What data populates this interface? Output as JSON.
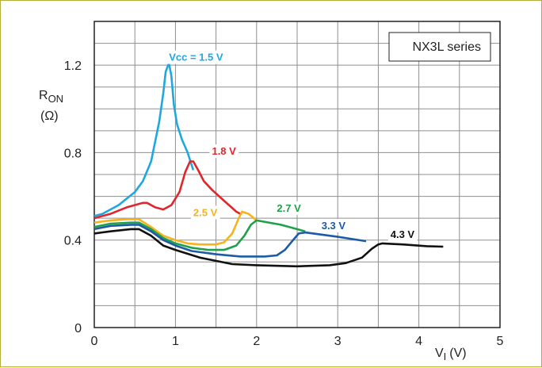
{
  "chart_data": {
    "type": "line",
    "title": "",
    "legend_box": "NX3L series",
    "xlabel_main": "V",
    "xlabel_sub": "I",
    "xlabel_unit": "(V)",
    "ylabel_main": "R",
    "ylabel_sub": "ON",
    "ylabel_unit": "(Ω)",
    "xlim": [
      0,
      5
    ],
    "ylim": [
      0,
      1.4
    ],
    "grid": true,
    "x_ticks": [
      {
        "value": 0,
        "label": "0"
      },
      {
        "value": 1,
        "label": "1"
      },
      {
        "value": 2,
        "label": "2"
      },
      {
        "value": 3,
        "label": "3"
      },
      {
        "value": 4,
        "label": "4"
      },
      {
        "value": 5,
        "label": "5"
      }
    ],
    "y_ticks": [
      {
        "value": 0,
        "label": "0"
      },
      {
        "value": 0.4,
        "label": "0.4"
      },
      {
        "value": 0.8,
        "label": "0.8"
      },
      {
        "value": 1.2,
        "label": "1.2"
      }
    ],
    "series": [
      {
        "name": "Vcc = 1.5 V",
        "color": "#1ea8df",
        "label_at": [
          0.92,
          1.22
        ],
        "points": [
          [
            0,
            0.51
          ],
          [
            0.1,
            0.52
          ],
          [
            0.3,
            0.56
          ],
          [
            0.5,
            0.62
          ],
          [
            0.6,
            0.67
          ],
          [
            0.7,
            0.76
          ],
          [
            0.75,
            0.85
          ],
          [
            0.8,
            0.94
          ],
          [
            0.85,
            1.07
          ],
          [
            0.88,
            1.17
          ],
          [
            0.92,
            1.21
          ],
          [
            0.95,
            1.15
          ],
          [
            0.98,
            1.02
          ],
          [
            1.02,
            0.93
          ],
          [
            1.08,
            0.86
          ],
          [
            1.15,
            0.8
          ],
          [
            1.22,
            0.72
          ]
        ]
      },
      {
        "name": "1.8 V",
        "color": "#e0262c",
        "label_at": [
          1.45,
          0.79
        ],
        "points": [
          [
            0,
            0.5
          ],
          [
            0.2,
            0.52
          ],
          [
            0.4,
            0.55
          ],
          [
            0.6,
            0.57
          ],
          [
            0.65,
            0.57
          ],
          [
            0.75,
            0.55
          ],
          [
            0.85,
            0.54
          ],
          [
            0.95,
            0.56
          ],
          [
            1.05,
            0.62
          ],
          [
            1.12,
            0.71
          ],
          [
            1.18,
            0.76
          ],
          [
            1.22,
            0.76
          ],
          [
            1.28,
            0.72
          ],
          [
            1.35,
            0.67
          ],
          [
            1.45,
            0.63
          ],
          [
            1.6,
            0.58
          ],
          [
            1.75,
            0.53
          ],
          [
            1.8,
            0.52
          ]
        ]
      },
      {
        "name": "2.5 V",
        "color": "#f6b21f",
        "label_at": [
          1.22,
          0.51
        ],
        "points": [
          [
            0,
            0.48
          ],
          [
            0.2,
            0.49
          ],
          [
            0.4,
            0.495
          ],
          [
            0.55,
            0.495
          ],
          [
            0.7,
            0.46
          ],
          [
            0.85,
            0.42
          ],
          [
            1.0,
            0.4
          ],
          [
            1.15,
            0.385
          ],
          [
            1.3,
            0.38
          ],
          [
            1.5,
            0.38
          ],
          [
            1.6,
            0.39
          ],
          [
            1.7,
            0.43
          ],
          [
            1.78,
            0.5
          ],
          [
            1.82,
            0.53
          ],
          [
            1.9,
            0.52
          ],
          [
            2.0,
            0.49
          ]
        ]
      },
      {
        "name": "2.7 V",
        "color": "#1ea14a",
        "label_at": [
          2.25,
          0.53
        ],
        "points": [
          [
            0,
            0.46
          ],
          [
            0.2,
            0.475
          ],
          [
            0.45,
            0.48
          ],
          [
            0.55,
            0.48
          ],
          [
            0.7,
            0.45
          ],
          [
            0.85,
            0.41
          ],
          [
            1.0,
            0.385
          ],
          [
            1.2,
            0.365
          ],
          [
            1.4,
            0.355
          ],
          [
            1.6,
            0.355
          ],
          [
            1.75,
            0.375
          ],
          [
            1.85,
            0.42
          ],
          [
            1.93,
            0.47
          ],
          [
            2.0,
            0.49
          ],
          [
            2.3,
            0.47
          ],
          [
            2.6,
            0.44
          ]
        ]
      },
      {
        "name": "3.3 V",
        "color": "#1f5aa6",
        "label_at": [
          2.8,
          0.45
        ],
        "points": [
          [
            0,
            0.45
          ],
          [
            0.2,
            0.465
          ],
          [
            0.45,
            0.47
          ],
          [
            0.55,
            0.47
          ],
          [
            0.7,
            0.44
          ],
          [
            0.85,
            0.4
          ],
          [
            1.0,
            0.375
          ],
          [
            1.2,
            0.35
          ],
          [
            1.5,
            0.335
          ],
          [
            1.8,
            0.325
          ],
          [
            2.1,
            0.325
          ],
          [
            2.25,
            0.33
          ],
          [
            2.35,
            0.355
          ],
          [
            2.45,
            0.4
          ],
          [
            2.52,
            0.43
          ],
          [
            2.6,
            0.435
          ],
          [
            3.0,
            0.415
          ],
          [
            3.35,
            0.395
          ]
        ]
      },
      {
        "name": "4.3 V",
        "color": "#111111",
        "label_at": [
          3.65,
          0.41
        ],
        "points": [
          [
            0,
            0.43
          ],
          [
            0.2,
            0.44
          ],
          [
            0.45,
            0.45
          ],
          [
            0.55,
            0.45
          ],
          [
            0.7,
            0.42
          ],
          [
            0.85,
            0.375
          ],
          [
            1.0,
            0.355
          ],
          [
            1.3,
            0.32
          ],
          [
            1.7,
            0.29
          ],
          [
            2.0,
            0.285
          ],
          [
            2.5,
            0.28
          ],
          [
            2.9,
            0.285
          ],
          [
            3.1,
            0.295
          ],
          [
            3.3,
            0.32
          ],
          [
            3.42,
            0.36
          ],
          [
            3.5,
            0.38
          ],
          [
            3.55,
            0.385
          ],
          [
            3.8,
            0.38
          ],
          [
            4.1,
            0.372
          ],
          [
            4.3,
            0.37
          ]
        ]
      }
    ]
  }
}
